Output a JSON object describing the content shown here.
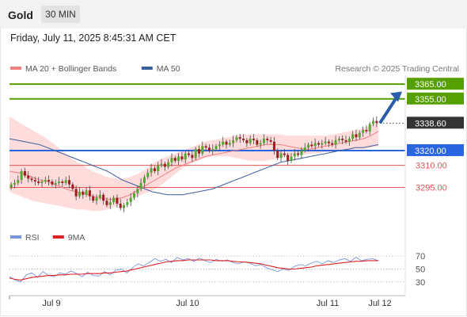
{
  "header": {
    "instrument": "Gold",
    "timeframe": "30 MIN",
    "datetime": "Friday, July 11, 2025 8:45:31 AM CET"
  },
  "colors": {
    "up": "#55a630",
    "down": "#9e1c1c",
    "bollinger": "#ffdcdc",
    "ma20": "#f08080",
    "ma50": "#3a5f9e",
    "green": "#55a000",
    "blue": "#2a65e0",
    "red": "#e25454",
    "arrow": "#2a5caa",
    "rsi": "#7a94dc",
    "rsi_ma": "#e02020",
    "last_price": "#333333"
  },
  "chart_data": [
    {
      "type": "candlestick",
      "legend": [
        {
          "label": "MA 20 + Bollinger Bands",
          "color": "#f08080"
        },
        {
          "label": "MA 50",
          "color": "#3a5f9e"
        }
      ],
      "source": "Research © 2025 Trading Central",
      "x_tick_labels": [
        "Jul 9",
        "Jul 10",
        "Jul 11",
        "Jul 12"
      ],
      "ylim": [
        3277,
        3371
      ],
      "levels": [
        {
          "value": 3365.0,
          "label": "3365.00",
          "color": "green",
          "style": "badge"
        },
        {
          "value": 3355.0,
          "label": "3355.00",
          "color": "green",
          "style": "badge"
        },
        {
          "value": 3338.6,
          "label": "3338.60",
          "color": "last_price",
          "style": "dotted"
        },
        {
          "value": 3320.0,
          "label": "3320.00",
          "color": "blue",
          "style": "badge"
        },
        {
          "value": 3310.0,
          "label": "3310.00",
          "color": "red",
          "style": "text"
        },
        {
          "value": 3295.0,
          "label": "3295.00",
          "color": "red",
          "style": "text"
        }
      ],
      "arrow": {
        "from_price": 3338.6,
        "to_price": 3360.0
      },
      "ohlc_closes": [
        3297,
        3298,
        3300,
        3306,
        3303,
        3301,
        3300,
        3299,
        3298,
        3299,
        3300,
        3299,
        3297,
        3298,
        3299,
        3298,
        3300,
        3297,
        3294,
        3289,
        3292,
        3290,
        3293,
        3289,
        3286,
        3288,
        3290,
        3286,
        3283,
        3285,
        3288,
        3284,
        3281,
        3283,
        3285,
        3288,
        3291,
        3294,
        3298,
        3302,
        3305,
        3308,
        3306,
        3310,
        3311,
        3309,
        3312,
        3315,
        3313,
        3316,
        3314,
        3318,
        3317,
        3315,
        3321,
        3318,
        3323,
        3322,
        3320,
        3321,
        3323,
        3324,
        3326,
        3324,
        3325,
        3327,
        3329,
        3328,
        3327,
        3325,
        3328,
        3327,
        3324,
        3325,
        3328,
        3327,
        3326,
        3320,
        3315,
        3318,
        3317,
        3313,
        3316,
        3318,
        3317,
        3320,
        3322,
        3324,
        3323,
        3325,
        3324,
        3325,
        3326,
        3325,
        3324,
        3327,
        3328,
        3327,
        3326,
        3328,
        3331,
        3329,
        3332,
        3334,
        3333,
        3338,
        3340,
        3338.6
      ],
      "ohlc_opens": [
        3295,
        3297,
        3298,
        3300,
        3306,
        3303,
        3301,
        3300,
        3299,
        3298,
        3299,
        3300,
        3299,
        3297,
        3298,
        3299,
        3298,
        3300,
        3297,
        3294,
        3289,
        3292,
        3290,
        3293,
        3289,
        3286,
        3288,
        3290,
        3286,
        3283,
        3285,
        3288,
        3284,
        3281,
        3283,
        3285,
        3288,
        3291,
        3294,
        3298,
        3302,
        3305,
        3308,
        3306,
        3310,
        3311,
        3309,
        3312,
        3315,
        3313,
        3316,
        3314,
        3318,
        3317,
        3315,
        3321,
        3318,
        3323,
        3322,
        3320,
        3321,
        3323,
        3324,
        3326,
        3324,
        3325,
        3327,
        3329,
        3328,
        3327,
        3325,
        3328,
        3327,
        3324,
        3325,
        3328,
        3327,
        3326,
        3320,
        3315,
        3318,
        3317,
        3313,
        3316,
        3318,
        3317,
        3320,
        3322,
        3324,
        3323,
        3325,
        3324,
        3325,
        3326,
        3325,
        3324,
        3327,
        3328,
        3327,
        3326,
        3328,
        3331,
        3329,
        3332,
        3334,
        3333,
        3338,
        3340
      ],
      "ma50": [
        3328,
        3327,
        3326,
        3325,
        3324,
        3322,
        3320,
        3318,
        3316,
        3314,
        3312,
        3310,
        3308,
        3306,
        3303,
        3300,
        3298,
        3296,
        3294,
        3292,
        3291,
        3290,
        3290,
        3290,
        3291,
        3292,
        3293,
        3294,
        3296,
        3298,
        3300,
        3302,
        3304,
        3306,
        3308,
        3310,
        3312,
        3313,
        3314,
        3315,
        3316,
        3317,
        3318,
        3319,
        3320,
        3321,
        3322,
        3322,
        3323,
        3324
      ],
      "ma20": [
        3306,
        3305,
        3304,
        3302,
        3300,
        3299,
        3297,
        3295,
        3293,
        3292,
        3291,
        3289,
        3288,
        3287,
        3287,
        3288,
        3290,
        3293,
        3296,
        3299,
        3302,
        3305,
        3308,
        3310,
        3312,
        3314,
        3316,
        3317,
        3318,
        3319,
        3320,
        3321,
        3322,
        3323,
        3324,
        3324,
        3324,
        3323,
        3322,
        3321,
        3321,
        3322,
        3323,
        3324,
        3325,
        3326,
        3327,
        3328,
        3330,
        3333
      ],
      "bb_upper": [
        3343,
        3340,
        3337,
        3334,
        3331,
        3328,
        3324,
        3320,
        3316,
        3312,
        3309,
        3306,
        3304,
        3302,
        3301,
        3301,
        3302,
        3304,
        3307,
        3311,
        3314,
        3316,
        3318,
        3320,
        3322,
        3324,
        3326,
        3327,
        3328,
        3329,
        3330,
        3331,
        3331,
        3331,
        3331,
        3331,
        3331,
        3330,
        3330,
        3330,
        3330,
        3330,
        3330,
        3331,
        3332,
        3333,
        3334,
        3335,
        3337,
        3339
      ],
      "bb_lower": [
        3292,
        3290,
        3288,
        3286,
        3285,
        3284,
        3283,
        3282,
        3281,
        3280,
        3280,
        3279,
        3279,
        3280,
        3282,
        3284,
        3287,
        3289,
        3291,
        3293,
        3296,
        3300,
        3304,
        3308,
        3311,
        3313,
        3315,
        3316,
        3316,
        3316,
        3315,
        3314,
        3313,
        3313,
        3313,
        3314,
        3315,
        3316,
        3317,
        3317,
        3318,
        3318,
        3319,
        3319,
        3320,
        3320,
        3321,
        3321,
        3322,
        3323
      ]
    },
    {
      "type": "line",
      "legend": [
        {
          "label": "RSI",
          "color": "#7a94dc"
        },
        {
          "label": "9MA",
          "color": "#e02020"
        }
      ],
      "ylim": [
        15,
        80
      ],
      "y_ticks": [
        70,
        50,
        30
      ],
      "series": [
        {
          "name": "RSI",
          "values": [
            38,
            33,
            30,
            41,
            44,
            37,
            46,
            40,
            38,
            44,
            42,
            47,
            43,
            38,
            45,
            40,
            39,
            46,
            41,
            48,
            50,
            44,
            52,
            58,
            55,
            60,
            66,
            62,
            65,
            60,
            68,
            64,
            66,
            62,
            67,
            63,
            60,
            65,
            62,
            64,
            60,
            58,
            61,
            59,
            55,
            57,
            52,
            49,
            46,
            50,
            48,
            54,
            57,
            55,
            59,
            62,
            58,
            63,
            60,
            64,
            66,
            62,
            68,
            63,
            65,
            66,
            63
          ]
        },
        {
          "name": "9MA",
          "values": [
            36,
            34,
            33,
            35,
            37,
            38,
            39,
            40,
            40,
            41,
            41,
            42,
            42,
            42,
            43,
            43,
            43,
            44,
            44,
            45,
            46,
            47,
            49,
            51,
            53,
            55,
            57,
            59,
            61,
            62,
            63,
            63,
            64,
            64,
            64,
            64,
            64,
            63,
            63,
            63,
            62,
            61,
            61,
            60,
            59,
            58,
            56,
            54,
            52,
            51,
            50,
            50,
            51,
            52,
            53,
            55,
            56,
            57,
            58,
            59,
            60,
            61,
            62,
            62,
            63,
            63,
            63
          ]
        }
      ],
      "x_tick_labels": [
        "Jul 9",
        "Jul 10",
        "Jul 11",
        "Jul 12"
      ]
    }
  ]
}
